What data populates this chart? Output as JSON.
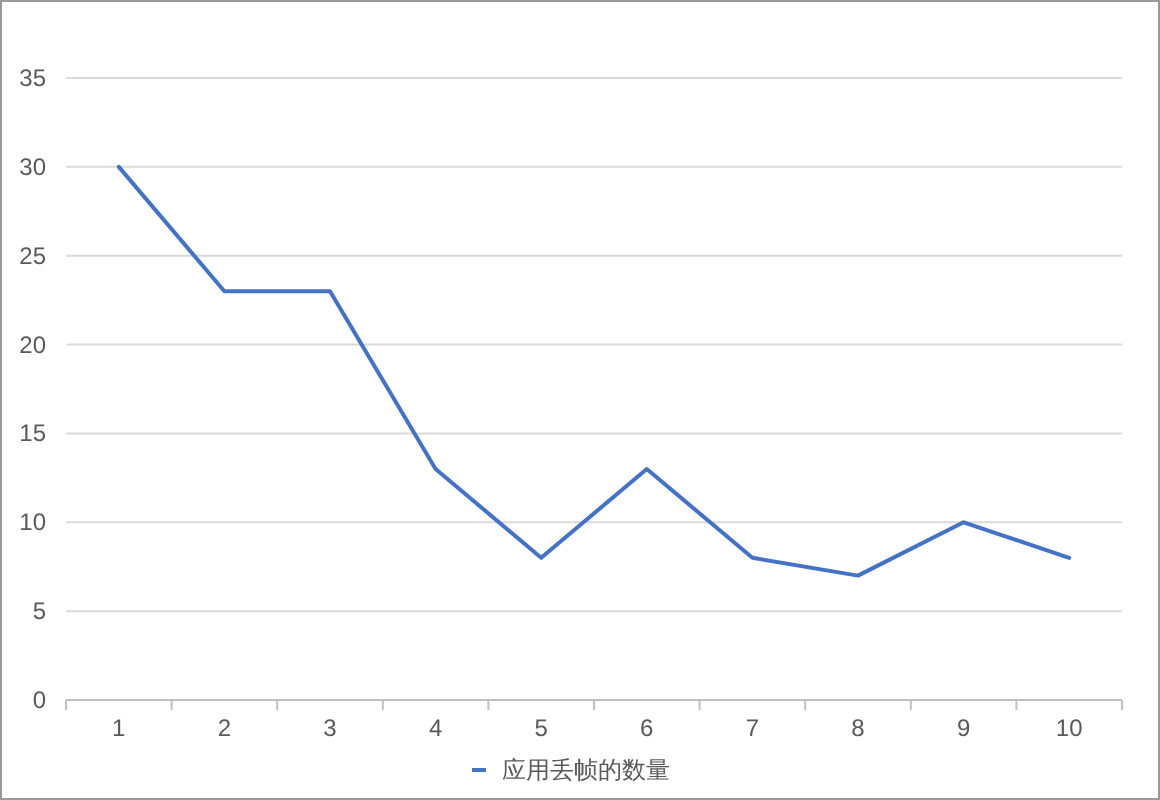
{
  "chart_data": {
    "type": "line",
    "categories": [
      "1",
      "2",
      "3",
      "4",
      "5",
      "6",
      "7",
      "8",
      "9",
      "10"
    ],
    "series": [
      {
        "name": "应用丢帧的数量",
        "color": "#4472c4",
        "values": [
          30,
          23,
          23,
          13,
          8,
          13,
          8,
          7,
          10,
          8
        ]
      }
    ],
    "ylim": [
      0,
      35
    ],
    "yticks": [
      0,
      5,
      10,
      15,
      20,
      25,
      30,
      35
    ],
    "grid": "y",
    "legend": "bottom"
  }
}
